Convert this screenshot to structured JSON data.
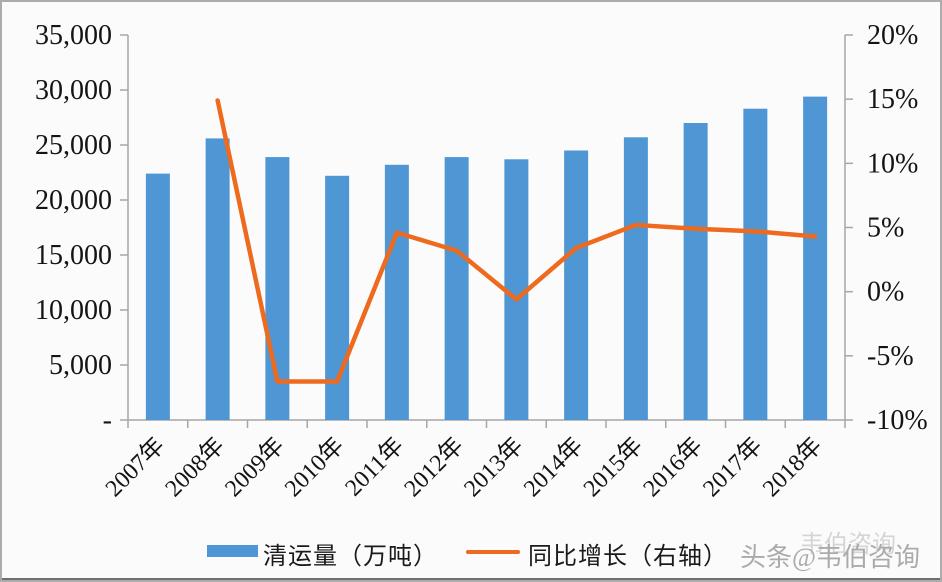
{
  "colors": {
    "bar": "#4F96D5",
    "line": "#ED6A1E",
    "axis": "#A6A6A6",
    "text": "#141414",
    "watermark": "#ABABAB",
    "background": "#FBFBFB"
  },
  "chart_data": {
    "type": "bar",
    "subtype": "combo-bar-line",
    "title": "",
    "categories": [
      "2007年",
      "2008年",
      "2009年",
      "2010年",
      "2011年",
      "2012年",
      "2013年",
      "2014年",
      "2015年",
      "2016年",
      "2017年",
      "2018年"
    ],
    "series": [
      {
        "name": "清运量（万吨）",
        "type": "bar",
        "axis": "left",
        "values": [
          22400,
          25600,
          23900,
          22200,
          23200,
          23900,
          23700,
          24500,
          25700,
          27000,
          28300,
          29400
        ]
      },
      {
        "name": "同比增长（右轴）",
        "type": "line",
        "axis": "right",
        "unit": "%",
        "values": [
          null,
          14.9,
          -7.0,
          -7.0,
          4.6,
          3.2,
          -0.6,
          3.4,
          5.2,
          4.9,
          4.7,
          4.3
        ]
      }
    ],
    "left_axis": {
      "min": 0,
      "max": 35000,
      "step": 5000,
      "tick_labels": [
        "35,000",
        "30,000",
        "25,000",
        "20,000",
        "15,000",
        "10,000",
        "5,000",
        "-"
      ]
    },
    "right_axis": {
      "min": -10,
      "max": 20,
      "step": 5,
      "tick_labels": [
        "20%",
        "15%",
        "10%",
        "5%",
        "0%",
        "-5%",
        "-10%"
      ]
    },
    "legend_position": "bottom",
    "grid": false
  },
  "watermark": {
    "text": "头条@韦伯咨询",
    "ghost": "韦伯咨询"
  }
}
